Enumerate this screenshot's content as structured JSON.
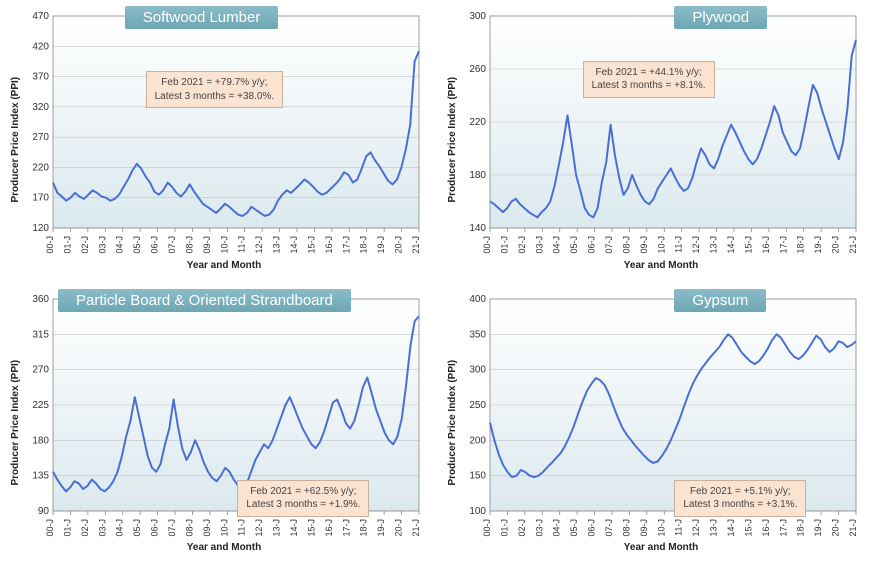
{
  "global": {
    "xlabel": "Year and Month",
    "ylabel": "Producer Price Index (PPI)",
    "line_color": "#4a6fd4",
    "line_width": 2,
    "bg_top": "#ffffff",
    "bg_bottom": "#dbe9ee",
    "grid_color": "#c4c4c4",
    "axis_color": "#888888",
    "badge_bg": "#7ab0bd",
    "ann_bg": "#fbe3d2",
    "xticks": [
      "00-J",
      "01-J",
      "02-J",
      "03-J",
      "04-J",
      "05-J",
      "06-J",
      "07-J",
      "08-J",
      "09-J",
      "10-J",
      "11-J",
      "12-J",
      "13-J",
      "14-J",
      "15-J",
      "16-J",
      "17-J",
      "18-J",
      "19-J",
      "20-J",
      "21-J"
    ]
  },
  "panels": [
    {
      "key": "softwood",
      "title": "Softwood Lumber",
      "title_left_pct": 28,
      "ylim": [
        120,
        470
      ],
      "ystep": 50,
      "ann": {
        "line1": "Feb 2021 = +79.7% y/y;",
        "line2": "Latest 3 months = +38.0%.",
        "top_pct": 24,
        "left_pct": 33
      },
      "data": [
        195,
        178,
        172,
        165,
        170,
        178,
        172,
        168,
        175,
        182,
        178,
        172,
        170,
        165,
        168,
        175,
        188,
        200,
        215,
        226,
        218,
        205,
        195,
        180,
        175,
        182,
        195,
        188,
        178,
        172,
        180,
        192,
        180,
        170,
        160,
        155,
        150,
        145,
        152,
        160,
        155,
        148,
        142,
        140,
        145,
        155,
        150,
        145,
        140,
        142,
        150,
        165,
        175,
        182,
        178,
        185,
        192,
        200,
        195,
        188,
        180,
        175,
        178,
        185,
        192,
        200,
        212,
        208,
        195,
        200,
        218,
        238,
        245,
        232,
        222,
        210,
        198,
        192,
        200,
        220,
        250,
        290,
        395,
        412
      ]
    },
    {
      "key": "plywood",
      "title": "Plywood",
      "title_left_pct": 55,
      "ylim": [
        140,
        300
      ],
      "ystep": 40,
      "ann": {
        "line1": "Feb 2021 = +44.1% y/y;",
        "line2": "Latest 3 months = +8.1%.",
        "top_pct": 20,
        "left_pct": 33
      },
      "data": [
        160,
        158,
        155,
        152,
        155,
        160,
        162,
        158,
        155,
        152,
        150,
        148,
        152,
        155,
        160,
        172,
        188,
        205,
        225,
        203,
        180,
        168,
        155,
        150,
        148,
        155,
        175,
        190,
        218,
        195,
        178,
        165,
        170,
        180,
        172,
        165,
        160,
        158,
        162,
        170,
        175,
        180,
        185,
        178,
        172,
        168,
        170,
        178,
        190,
        200,
        195,
        188,
        185,
        192,
        202,
        210,
        218,
        212,
        205,
        198,
        192,
        188,
        192,
        200,
        210,
        220,
        232,
        225,
        212,
        205,
        198,
        195,
        200,
        215,
        232,
        248,
        242,
        230,
        220,
        210,
        200,
        192,
        205,
        230,
        270,
        282
      ]
    },
    {
      "key": "particle",
      "title": "Particle Board & Oriented Strandboard",
      "title_left_pct": 12,
      "ylim": [
        90,
        360
      ],
      "ystep": 45,
      "ann": {
        "line1": "Feb 2021 = +62.5% y/y;",
        "line2": "Latest 3 months = +1.9%.",
        "top_pct": 72,
        "left_pct": 55
      },
      "data": [
        140,
        130,
        122,
        115,
        120,
        128,
        125,
        118,
        122,
        130,
        125,
        118,
        115,
        120,
        128,
        140,
        160,
        185,
        205,
        235,
        210,
        185,
        160,
        145,
        140,
        150,
        175,
        195,
        232,
        198,
        170,
        155,
        165,
        180,
        168,
        152,
        140,
        132,
        128,
        135,
        145,
        140,
        130,
        122,
        118,
        125,
        140,
        155,
        165,
        175,
        170,
        180,
        195,
        210,
        225,
        235,
        222,
        208,
        195,
        185,
        175,
        170,
        178,
        192,
        210,
        228,
        232,
        218,
        202,
        195,
        205,
        225,
        248,
        260,
        240,
        220,
        205,
        190,
        180,
        175,
        185,
        208,
        250,
        300,
        332,
        338
      ]
    },
    {
      "key": "gypsum",
      "title": "Gypsum",
      "title_left_pct": 55,
      "ylim": [
        100,
        400
      ],
      "ystep": 50,
      "ann": {
        "line1": "Feb 2021 = +5.1% y/y;",
        "line2": "Latest 3 months = +3.1%.",
        "top_pct": 72,
        "left_pct": 55
      },
      "data": [
        225,
        200,
        180,
        165,
        155,
        148,
        150,
        158,
        155,
        150,
        148,
        150,
        155,
        162,
        168,
        175,
        182,
        192,
        205,
        220,
        238,
        255,
        270,
        280,
        288,
        285,
        278,
        265,
        248,
        232,
        218,
        208,
        200,
        192,
        185,
        178,
        172,
        168,
        170,
        178,
        188,
        200,
        215,
        230,
        248,
        265,
        280,
        292,
        302,
        310,
        318,
        325,
        332,
        342,
        350,
        345,
        335,
        325,
        318,
        312,
        308,
        312,
        320,
        330,
        342,
        350,
        345,
        335,
        325,
        318,
        315,
        320,
        328,
        338,
        348,
        343,
        332,
        325,
        330,
        340,
        338,
        332,
        335,
        340
      ]
    }
  ]
}
